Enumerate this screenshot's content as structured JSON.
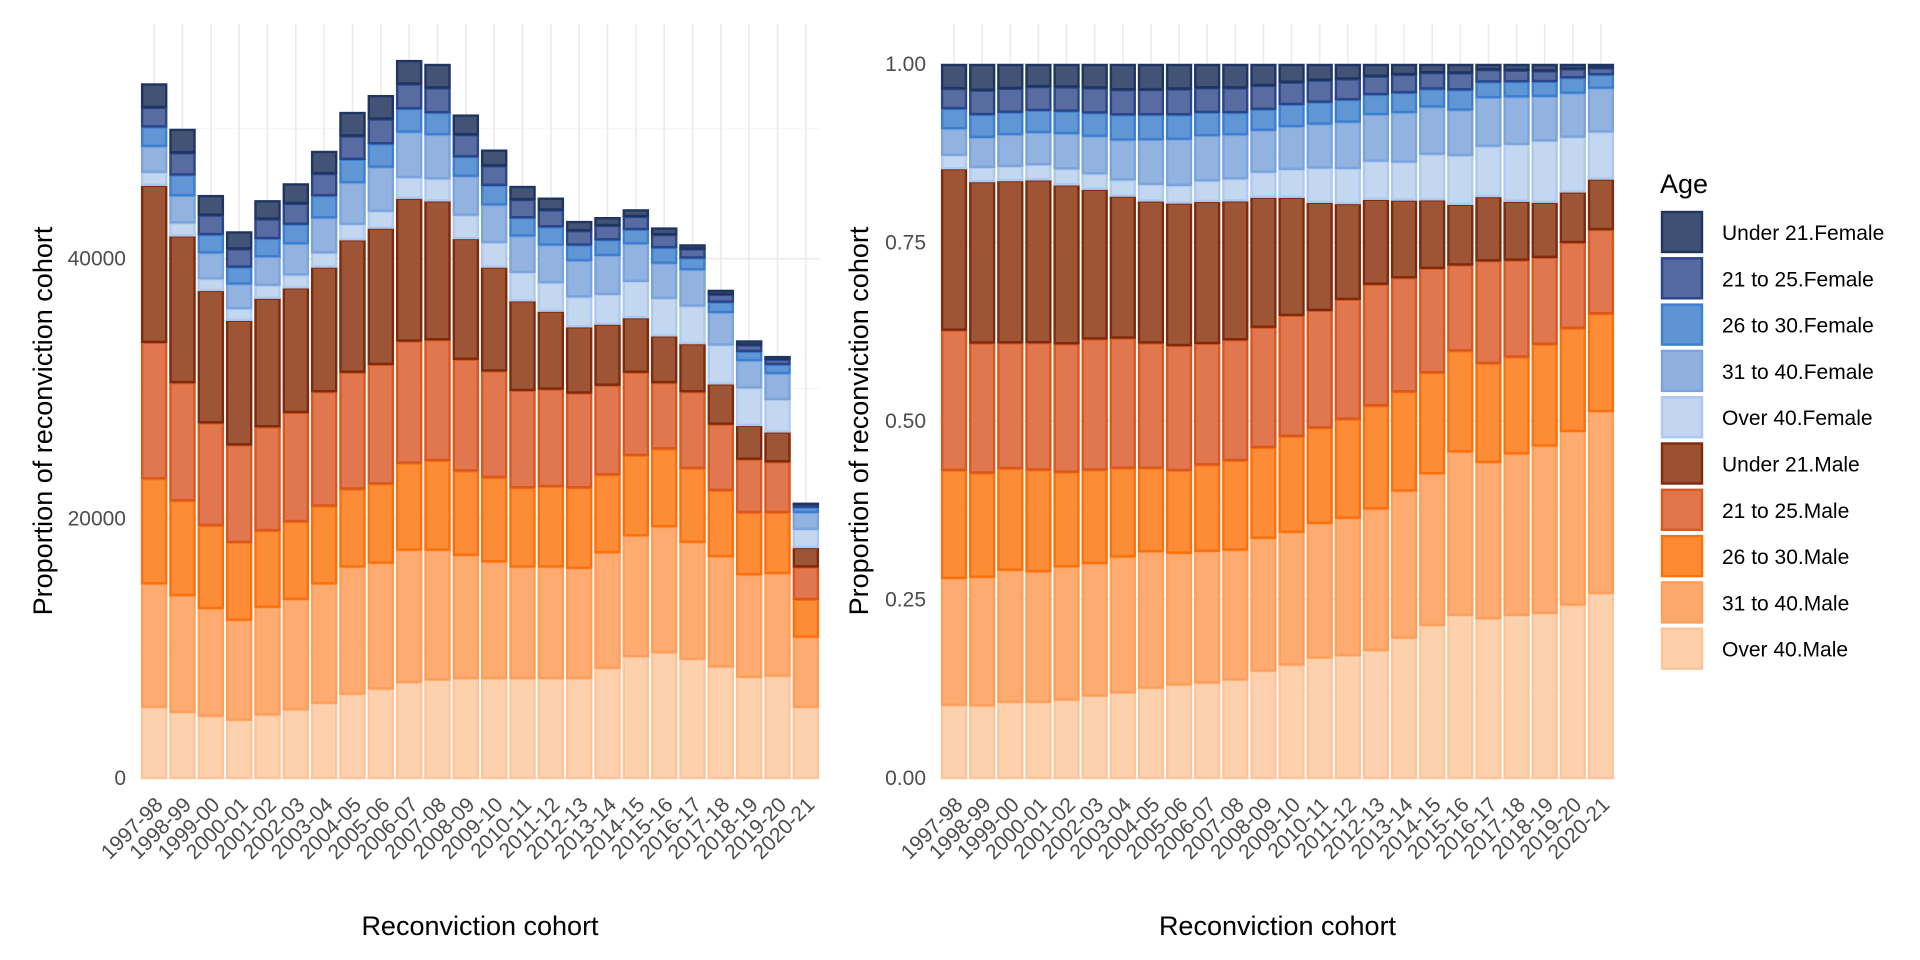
{
  "chart_data": [
    {
      "type": "bar",
      "stacking": "stacked",
      "title": "",
      "xlabel": "Reconviction cohort",
      "ylabel": "Proportion of reconviction cohort",
      "ylim": [
        0,
        55000
      ],
      "yticks": [
        0,
        20000,
        40000
      ],
      "ytick_labels": [
        "0",
        "20000",
        "40000"
      ],
      "grid": true,
      "categories": [
        "1997-98",
        "1998-99",
        "1999-00",
        "2000-01",
        "2001-02",
        "2002-03",
        "2003-04",
        "2004-05",
        "2005-06",
        "2006-07",
        "2007-08",
        "2008-09",
        "2009-10",
        "2010-11",
        "2011-12",
        "2012-13",
        "2013-14",
        "2014-15",
        "2015-16",
        "2016-17",
        "2017-18",
        "2018-19",
        "2019-20",
        "2020-21"
      ],
      "series": [
        {
          "name": "Over 40.Male",
          "values": [
            5500,
            5100,
            4800,
            4500,
            4900,
            5300,
            5800,
            6500,
            6900,
            7400,
            7600,
            7700,
            7700,
            7700,
            7700,
            7700,
            8500,
            9400,
            9700,
            9200,
            8600,
            7800,
            7900,
            5500
          ]
        },
        {
          "name": "31 to 40.Male",
          "values": [
            9500,
            9000,
            8300,
            7700,
            8300,
            8500,
            9200,
            9800,
            9700,
            10200,
            10000,
            9500,
            9000,
            8600,
            8600,
            8500,
            8900,
            9300,
            9700,
            9000,
            8500,
            7900,
            7900,
            5400
          ]
        },
        {
          "name": "26 to 30.Male",
          "values": [
            8100,
            7300,
            6400,
            6000,
            5900,
            6000,
            6000,
            6000,
            6100,
            6700,
            6900,
            6500,
            6500,
            6100,
            6200,
            6200,
            6000,
            6200,
            6000,
            5700,
            5100,
            4800,
            4700,
            2900
          ]
        },
        {
          "name": "21 to 25.Male",
          "values": [
            10500,
            9100,
            7900,
            7500,
            8000,
            8400,
            8800,
            9000,
            9200,
            9400,
            9300,
            8600,
            8200,
            7500,
            7500,
            7300,
            6900,
            6400,
            5100,
            5900,
            5100,
            4100,
            3900,
            2500
          ]
        },
        {
          "name": "Under 21.Male",
          "values": [
            12100,
            11300,
            10200,
            9600,
            9900,
            9600,
            9600,
            10200,
            10500,
            11000,
            10700,
            9300,
            8000,
            6900,
            6000,
            5100,
            4700,
            4200,
            3600,
            3700,
            3100,
            2600,
            2300,
            1500
          ]
        },
        {
          "name": "Over 40.Female",
          "values": [
            1000,
            1000,
            900,
            900,
            1000,
            1000,
            1100,
            1200,
            1300,
            1600,
            1700,
            1800,
            1900,
            2200,
            2200,
            2300,
            2300,
            2800,
            2900,
            2900,
            3000,
            2900,
            2500,
            1400
          ]
        },
        {
          "name": "31 to 40.Female",
          "values": [
            2000,
            2100,
            2000,
            1900,
            2200,
            2400,
            2700,
            3200,
            3400,
            3500,
            3400,
            3000,
            2900,
            2800,
            2900,
            2800,
            3000,
            2900,
            2700,
            2800,
            2500,
            2100,
            2000,
            1300
          ]
        },
        {
          "name": "26 to 30.Female",
          "values": [
            1500,
            1600,
            1400,
            1300,
            1400,
            1500,
            1700,
            1800,
            1800,
            1800,
            1700,
            1500,
            1500,
            1400,
            1400,
            1200,
            1200,
            1100,
            1200,
            900,
            800,
            700,
            700,
            400
          ]
        },
        {
          "name": "21 to 25.Female",
          "values": [
            1500,
            1700,
            1500,
            1400,
            1500,
            1600,
            1700,
            1800,
            1900,
            1900,
            1900,
            1700,
            1500,
            1400,
            1300,
            1100,
            1100,
            1000,
            1000,
            700,
            600,
            500,
            400,
            200
          ]
        },
        {
          "name": "Under 21.Female",
          "values": [
            1800,
            1800,
            1500,
            1300,
            1400,
            1500,
            1700,
            1800,
            1800,
            1800,
            1800,
            1500,
            1200,
            1000,
            900,
            700,
            600,
            500,
            500,
            300,
            300,
            300,
            200,
            100
          ]
        }
      ]
    },
    {
      "type": "bar",
      "stacking": "fill",
      "title": "",
      "xlabel": "Reconviction cohort",
      "ylabel": "Proportion of reconviction cohort",
      "ylim": [
        0,
        1
      ],
      "yticks": [
        0,
        0.25,
        0.5,
        0.75,
        1
      ],
      "ytick_labels": [
        "0.00",
        "0.25",
        "0.50",
        "0.75",
        "1.00"
      ],
      "grid": true,
      "categories": [
        "1997-98",
        "1998-99",
        "1999-00",
        "2000-01",
        "2001-02",
        "2002-03",
        "2003-04",
        "2004-05",
        "2005-06",
        "2006-07",
        "2007-08",
        "2008-09",
        "2009-10",
        "2010-11",
        "2011-12",
        "2012-13",
        "2013-14",
        "2014-15",
        "2015-16",
        "2016-17",
        "2017-18",
        "2018-19",
        "2019-20",
        "2020-21"
      ],
      "series_source": "same counts as first chart, normalised to proportions"
    }
  ],
  "legend": {
    "title": "Age",
    "position": "right",
    "items": [
      {
        "label": "Under 21.Female",
        "fill": "#3e5073",
        "stroke": "#1e3561"
      },
      {
        "label": "21 to 25.Female",
        "fill": "#5669a0",
        "stroke": "#2a4588"
      },
      {
        "label": "26 to 30.Female",
        "fill": "#5e94d4",
        "stroke": "#3c7fd0"
      },
      {
        "label": "31 to 40.Female",
        "fill": "#90b1de",
        "stroke": "#7ba3dc"
      },
      {
        "label": "Over 40.Female",
        "fill": "#c2d6f1",
        "stroke": "#aec9ef"
      },
      {
        "label": "Under 21.Male",
        "fill": "#9c5232",
        "stroke": "#7e2a0c"
      },
      {
        "label": "21 to 25.Male",
        "fill": "#e0744a",
        "stroke": "#d8581f"
      },
      {
        "label": "26 to 30.Male",
        "fill": "#fd8a32",
        "stroke": "#fc700c"
      },
      {
        "label": "31 to 40.Male",
        "fill": "#fda96e",
        "stroke": "#fd9e5b"
      },
      {
        "label": "Over 40.Male",
        "fill": "#fdd0ab",
        "stroke": "#fdc49a"
      }
    ]
  }
}
